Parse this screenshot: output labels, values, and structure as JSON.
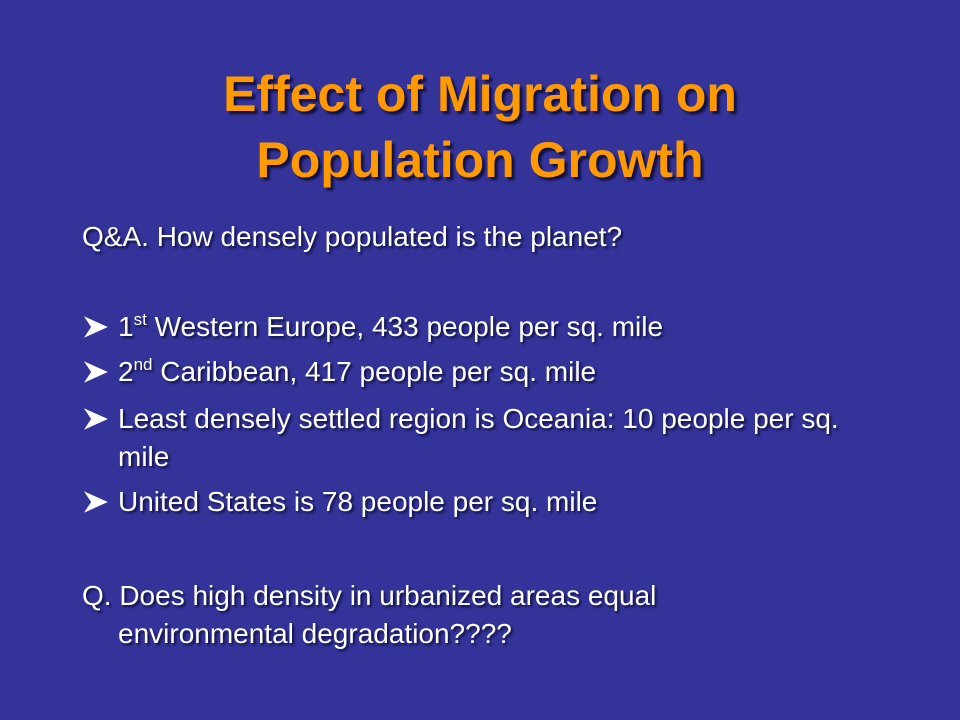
{
  "slide": {
    "title": [
      "Effect of Migration on",
      "Population Growth"
    ],
    "intro": "Q&A. How densely populated is the planet?",
    "bullets": [
      {
        "number": "1",
        "sup": "st",
        "text": "Western Europe, 433 people per sq. mile"
      },
      {
        "number": "2",
        "sup": "nd",
        "text": "Caribbean, 417 people per sq. mile"
      },
      {
        "text": "Least densely settled region is Oceania: 10 people per sq. mile"
      },
      {
        "text": "United States is 78 people per sq. mile"
      }
    ],
    "question": "Q. Does high density in urbanized areas equal environmental degradation????"
  }
}
